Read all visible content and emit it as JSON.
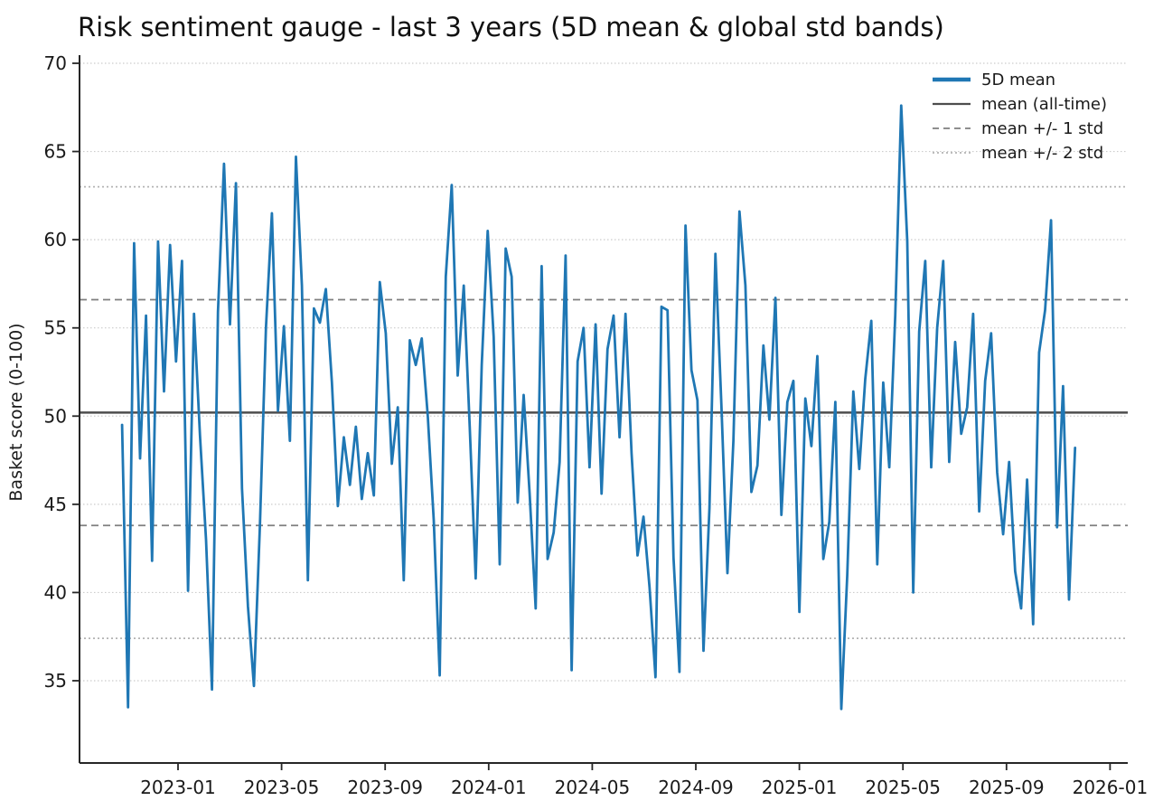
{
  "chart_data": {
    "type": "line",
    "title": "Risk sentiment gauge - last 3 years (5D mean & global std bands)",
    "xlabel": "",
    "ylabel": "Basket score (0-100)",
    "y_ticks": [
      35,
      40,
      45,
      50,
      55,
      60,
      65,
      70
    ],
    "ylim": [
      30.3,
      70.5
    ],
    "x_tick_labels": [
      "2023-01",
      "2023-05",
      "2023-09",
      "2024-01",
      "2024-05",
      "2024-09",
      "2025-01",
      "2025-05",
      "2025-09",
      "2026-01"
    ],
    "x_tick_interval_months": 4,
    "grid": "dotted horizontal gridlines at every y tick",
    "legend_position": "upper right, no frame",
    "legend": [
      "5D mean",
      "mean (all-time)",
      "mean +/- 1 std",
      "mean +/- 2 std"
    ],
    "mean_all_time": 50.2,
    "std_bands": {
      "plus_1_std": 56.6,
      "minus_1_std": 43.8,
      "plus_2_std": 63.0,
      "minus_2_std": 37.4
    },
    "colors": {
      "series": "#1f77b4",
      "mean_line": "#4d4d4d",
      "std1_line": "#7f7f7f",
      "std2_line": "#b3b3b3",
      "grid": "#cccccc",
      "spine": "#262626"
    },
    "series": [
      {
        "name": "5D mean",
        "x_months_from_first_tick_start": -2.16,
        "x_months_step": 0.2315,
        "values": [
          49.5,
          33.5,
          59.8,
          47.6,
          55.7,
          41.8,
          59.9,
          51.4,
          59.7,
          53.1,
          58.8,
          40.1,
          55.8,
          48.9,
          43.0,
          34.5,
          55.9,
          64.3,
          55.2,
          63.2,
          45.9,
          39.2,
          34.7,
          43.9,
          55.0,
          61.5,
          50.3,
          55.1,
          48.6,
          64.7,
          57.4,
          40.7,
          56.1,
          55.3,
          57.2,
          51.9,
          44.9,
          48.8,
          46.1,
          49.4,
          45.3,
          47.9,
          45.5,
          57.6,
          54.7,
          47.3,
          50.5,
          40.7,
          54.3,
          52.9,
          54.4,
          50.0,
          44.1,
          35.3,
          57.9,
          63.1,
          52.3,
          57.4,
          49.4,
          40.8,
          52.9,
          60.5,
          54.5,
          41.6,
          59.5,
          57.9,
          45.1,
          51.2,
          45.6,
          39.1,
          58.5,
          41.9,
          43.4,
          47.4,
          59.1,
          35.6,
          53.1,
          55.0,
          47.1,
          55.2,
          45.6,
          53.8,
          55.7,
          48.8,
          55.8,
          47.9,
          42.1,
          44.3,
          40.3,
          35.2,
          56.2,
          56.0,
          42.0,
          35.5,
          60.8,
          52.6,
          50.9,
          36.7,
          44.8,
          59.2,
          50.5,
          41.1,
          48.6,
          61.6,
          57.4,
          45.7,
          47.2,
          54.0,
          49.8,
          56.7,
          44.4,
          50.8,
          52.0,
          38.9,
          51.0,
          48.3,
          53.4,
          41.9,
          44.0,
          50.8,
          33.4,
          41.0,
          51.4,
          47.0,
          52.1,
          55.4,
          41.6,
          51.9,
          47.1,
          55.7,
          67.6,
          59.9,
          40.0,
          54.8,
          58.8,
          47.1,
          55.0,
          58.8,
          47.4,
          54.2,
          49.0,
          50.5,
          55.8,
          44.6,
          52.0,
          54.7,
          46.8,
          43.3,
          47.4,
          41.2,
          39.1,
          46.4,
          38.2,
          53.6,
          56.0,
          61.1,
          43.7,
          51.7,
          39.6,
          48.2
        ]
      }
    ]
  }
}
